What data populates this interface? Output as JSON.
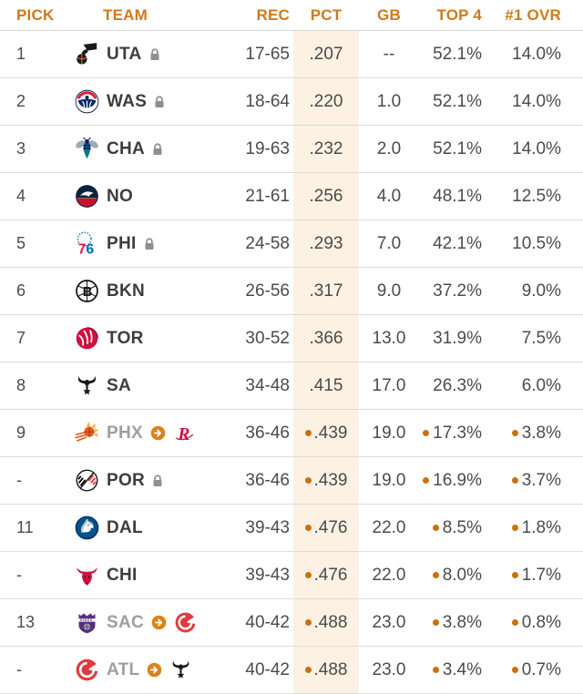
{
  "colors": {
    "accent": "#ce7a19",
    "pct_band": "#fcf1e3",
    "bullet": "#c8710f",
    "arrow_circle": "#d9831a",
    "lock": "#8f8f8f",
    "row_border": "#dcdcdc",
    "header_border": "#d4d4d4",
    "text": "#4b4b4b",
    "team_text": "#3d3d3d",
    "muted_team_text": "#9e9e9e"
  },
  "header": {
    "columns": [
      "PICK",
      "TEAM",
      "REC",
      "PCT",
      "GB",
      "TOP 4",
      "#1 OVR"
    ]
  },
  "icons": {
    "lock": "lock-icon",
    "traded_arrow": "traded-arrow-icon",
    "tie_bullet": "tie-bullet-icon"
  },
  "rows": [
    {
      "pick": "1",
      "team": "UTA",
      "logo": "utah-jazz-logo",
      "locked": true,
      "muted": false,
      "traded_to": null,
      "target_logo": null,
      "dots": false,
      "rec": "17-65",
      "pct": ".207",
      "gb": "--",
      "top4": "52.1%",
      "no1": "14.0%"
    },
    {
      "pick": "2",
      "team": "WAS",
      "logo": "washington-wizards-logo",
      "locked": true,
      "muted": false,
      "traded_to": null,
      "target_logo": null,
      "dots": false,
      "rec": "18-64",
      "pct": ".220",
      "gb": "1.0",
      "top4": "52.1%",
      "no1": "14.0%"
    },
    {
      "pick": "3",
      "team": "CHA",
      "logo": "charlotte-hornets-logo",
      "locked": true,
      "muted": false,
      "traded_to": null,
      "target_logo": null,
      "dots": false,
      "rec": "19-63",
      "pct": ".232",
      "gb": "2.0",
      "top4": "52.1%",
      "no1": "14.0%"
    },
    {
      "pick": "4",
      "team": "NO",
      "logo": "new-orleans-pelicans-logo",
      "locked": false,
      "muted": false,
      "traded_to": null,
      "target_logo": null,
      "dots": false,
      "rec": "21-61",
      "pct": ".256",
      "gb": "4.0",
      "top4": "48.1%",
      "no1": "12.5%"
    },
    {
      "pick": "5",
      "team": "PHI",
      "logo": "philadelphia-76ers-logo",
      "locked": true,
      "muted": false,
      "traded_to": null,
      "target_logo": null,
      "dots": false,
      "rec": "24-58",
      "pct": ".293",
      "gb": "7.0",
      "top4": "42.1%",
      "no1": "10.5%"
    },
    {
      "pick": "6",
      "team": "BKN",
      "logo": "brooklyn-nets-logo",
      "locked": false,
      "muted": false,
      "traded_to": null,
      "target_logo": null,
      "dots": false,
      "rec": "26-56",
      "pct": ".317",
      "gb": "9.0",
      "top4": "37.2%",
      "no1": "9.0%"
    },
    {
      "pick": "7",
      "team": "TOR",
      "logo": "toronto-raptors-logo",
      "locked": false,
      "muted": false,
      "traded_to": null,
      "target_logo": null,
      "dots": false,
      "rec": "30-52",
      "pct": ".366",
      "gb": "13.0",
      "top4": "31.9%",
      "no1": "7.5%"
    },
    {
      "pick": "8",
      "team": "SA",
      "logo": "san-antonio-spurs-logo",
      "locked": false,
      "muted": false,
      "traded_to": null,
      "target_logo": null,
      "dots": false,
      "rec": "34-48",
      "pct": ".415",
      "gb": "17.0",
      "top4": "26.3%",
      "no1": "6.0%"
    },
    {
      "pick": "9",
      "team": "PHX",
      "logo": "phoenix-suns-logo",
      "locked": false,
      "muted": true,
      "traded_to": "HOU",
      "target_logo": "houston-rockets-logo",
      "dots": true,
      "rec": "36-46",
      "pct": ".439",
      "gb": "19.0",
      "top4": "17.3%",
      "no1": "3.8%"
    },
    {
      "pick": "-",
      "team": "POR",
      "logo": "portland-trail-blazers-logo",
      "locked": true,
      "muted": false,
      "traded_to": null,
      "target_logo": null,
      "dots": true,
      "rec": "36-46",
      "pct": ".439",
      "gb": "19.0",
      "top4": "16.9%",
      "no1": "3.7%"
    },
    {
      "pick": "11",
      "team": "DAL",
      "logo": "dallas-mavericks-logo",
      "locked": false,
      "muted": false,
      "traded_to": null,
      "target_logo": null,
      "dots": true,
      "rec": "39-43",
      "pct": ".476",
      "gb": "22.0",
      "top4": "8.5%",
      "no1": "1.8%"
    },
    {
      "pick": "-",
      "team": "CHI",
      "logo": "chicago-bulls-logo",
      "locked": false,
      "muted": false,
      "traded_to": null,
      "target_logo": null,
      "dots": true,
      "rec": "39-43",
      "pct": ".476",
      "gb": "22.0",
      "top4": "8.0%",
      "no1": "1.7%"
    },
    {
      "pick": "13",
      "team": "SAC",
      "logo": "sacramento-kings-logo",
      "locked": false,
      "muted": true,
      "traded_to": "ATL",
      "target_logo": "atlanta-hawks-logo",
      "dots": true,
      "rec": "40-42",
      "pct": ".488",
      "gb": "23.0",
      "top4": "3.8%",
      "no1": "0.8%"
    },
    {
      "pick": "-",
      "team": "ATL",
      "logo": "atlanta-hawks-logo",
      "locked": false,
      "muted": true,
      "traded_to": "SA",
      "target_logo": "san-antonio-spurs-logo",
      "dots": true,
      "rec": "40-42",
      "pct": ".488",
      "gb": "23.0",
      "top4": "3.4%",
      "no1": "0.7%"
    }
  ]
}
